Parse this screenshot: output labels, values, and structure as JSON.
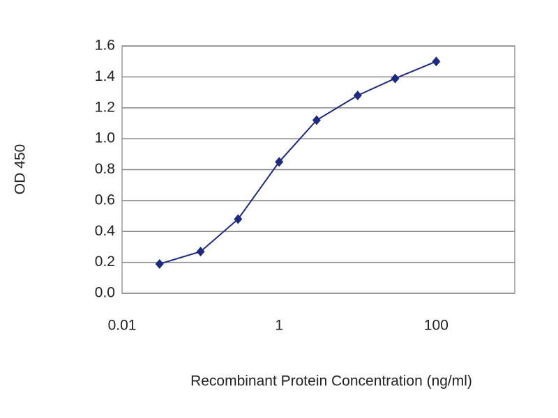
{
  "chart_data": {
    "type": "line",
    "x_label": "Recombinant Protein Concentration (ng/ml)",
    "y_label": "OD 450",
    "x_scale": "log",
    "grid": true,
    "series": [
      {
        "name": "OD 450",
        "color": "#1c2a80",
        "x": [
          0.03,
          0.1,
          0.3,
          1,
          3,
          10,
          30,
          100
        ],
        "values": [
          0.19,
          0.27,
          0.48,
          0.85,
          1.12,
          1.28,
          1.39,
          1.5
        ]
      }
    ],
    "xlim": [
      0.01,
      1000
    ],
    "xticks": [
      0.01,
      1,
      100
    ],
    "ylim": [
      0,
      1.6
    ],
    "yticks": [
      {
        "value": 0,
        "label": "0.0"
      },
      0.2,
      0.4,
      0.6,
      0.8,
      {
        "value": 1,
        "label": "1.0"
      },
      1.2,
      1.4,
      1.6
    ]
  }
}
